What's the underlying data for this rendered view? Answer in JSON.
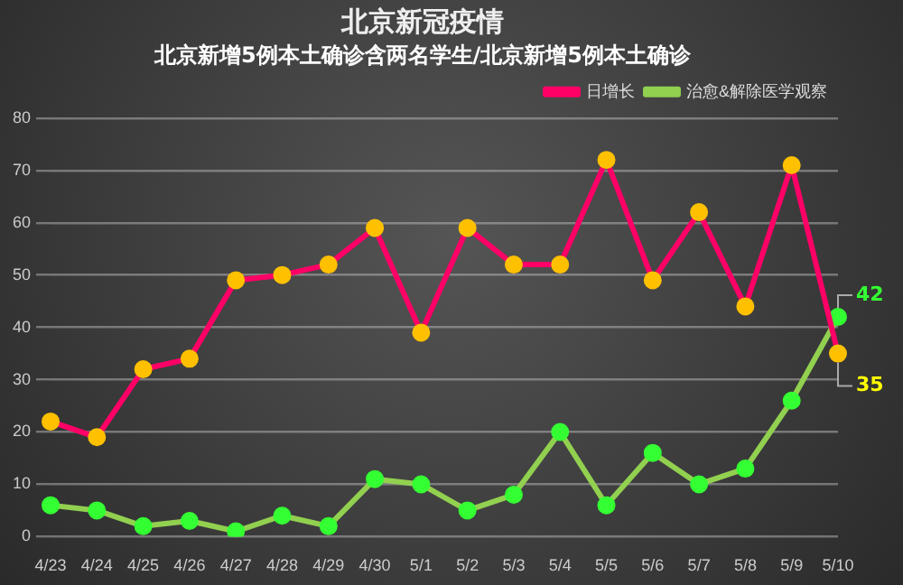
{
  "chart_data": {
    "type": "line",
    "title": "北京新冠疫情",
    "subtitle": "北京新增5例本土确诊含两名学生/北京新增5例本土确诊",
    "categories": [
      "4/23",
      "4/24",
      "4/25",
      "4/26",
      "4/27",
      "4/28",
      "4/29",
      "4/30",
      "5/1",
      "5/2",
      "5/3",
      "5/4",
      "5/5",
      "5/6",
      "5/7",
      "5/8",
      "5/9",
      "5/10"
    ],
    "series": [
      {
        "name": "日增长",
        "color": "#ff0066",
        "values": [
          22,
          19,
          32,
          34,
          49,
          50,
          52,
          59,
          39,
          59,
          52,
          52,
          72,
          49,
          62,
          44,
          71,
          35
        ],
        "value_labels": [
          null,
          null,
          null,
          null,
          null,
          null,
          null,
          null,
          null,
          null,
          null,
          null,
          null,
          null,
          null,
          null,
          null,
          "35"
        ]
      },
      {
        "name": "治愈&解除医学观察",
        "color": "#92d050",
        "values": [
          6,
          5,
          2,
          3,
          1,
          4,
          2,
          11,
          10,
          5,
          8,
          20,
          6,
          16,
          10,
          13,
          26,
          42
        ],
        "value_labels": [
          null,
          null,
          null,
          null,
          null,
          null,
          null,
          null,
          null,
          null,
          null,
          null,
          null,
          null,
          null,
          null,
          null,
          "42"
        ]
      }
    ],
    "ylim": [
      0,
      80
    ],
    "yticks": [
      0,
      10,
      20,
      30,
      40,
      50,
      60,
      70,
      80
    ],
    "grid": "y",
    "legend": "top right",
    "marker": "circle",
    "line_style": "solid"
  }
}
